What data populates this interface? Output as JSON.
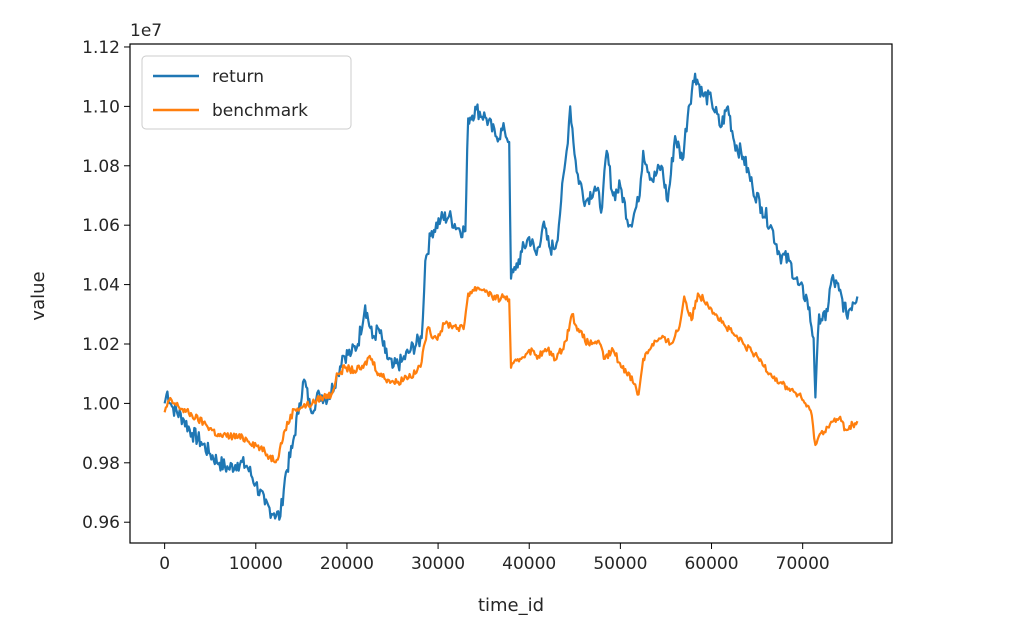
{
  "chart_data": {
    "type": "line",
    "xlabel": "time_id",
    "ylabel": "value",
    "offset_text": "1e7",
    "xlim": [
      -3800,
      79800
    ],
    "ylim": [
      0.953,
      1.121
    ],
    "xticks": [
      0,
      10000,
      20000,
      30000,
      40000,
      50000,
      60000,
      70000
    ],
    "xtick_labels": [
      "0",
      "10000",
      "20000",
      "30000",
      "40000",
      "50000",
      "60000",
      "70000"
    ],
    "yticks": [
      0.96,
      0.98,
      1.0,
      1.02,
      1.04,
      1.06,
      1.08,
      1.1,
      1.12
    ],
    "ytick_labels": [
      "0.96",
      "0.98",
      "1.00",
      "1.02",
      "1.04",
      "1.06",
      "1.08",
      "1.10",
      "1.12"
    ],
    "grid": false,
    "legend_position": "top-left",
    "series": [
      {
        "name": "return",
        "color": "#1f77b4",
        "points": [
          [
            0,
            1.0
          ],
          [
            300,
            1.004
          ],
          [
            800,
            0.999
          ],
          [
            2000,
            0.995
          ],
          [
            3000,
            0.99
          ],
          [
            4000,
            0.987
          ],
          [
            5000,
            0.983
          ],
          [
            6000,
            0.98
          ],
          [
            7000,
            0.978
          ],
          [
            8000,
            0.98
          ],
          [
            9000,
            0.979
          ],
          [
            10000,
            0.973
          ],
          [
            11000,
            0.966
          ],
          [
            12000,
            0.963
          ],
          [
            12700,
            0.962
          ],
          [
            13200,
            0.975
          ],
          [
            14000,
            0.985
          ],
          [
            14800,
            1.0
          ],
          [
            15300,
            1.008
          ],
          [
            16000,
            0.998
          ],
          [
            17000,
            1.003
          ],
          [
            18000,
            1.002
          ],
          [
            19000,
            1.01
          ],
          [
            19500,
            1.016
          ],
          [
            20500,
            1.017
          ],
          [
            21200,
            1.02
          ],
          [
            22000,
            1.033
          ],
          [
            22800,
            1.022
          ],
          [
            23500,
            1.025
          ],
          [
            24200,
            1.017
          ],
          [
            25000,
            1.012
          ],
          [
            26000,
            1.014
          ],
          [
            27000,
            1.018
          ],
          [
            28200,
            1.022
          ],
          [
            28600,
            1.048
          ],
          [
            29300,
            1.058
          ],
          [
            30300,
            1.062
          ],
          [
            31200,
            1.063
          ],
          [
            32200,
            1.059
          ],
          [
            33000,
            1.058
          ],
          [
            33300,
            1.096
          ],
          [
            34200,
            1.099
          ],
          [
            35300,
            1.096
          ],
          [
            36300,
            1.09
          ],
          [
            37300,
            1.092
          ],
          [
            37800,
            1.088
          ],
          [
            38000,
            1.042
          ],
          [
            38500,
            1.045
          ],
          [
            39200,
            1.051
          ],
          [
            40000,
            1.056
          ],
          [
            40800,
            1.05
          ],
          [
            41500,
            1.06
          ],
          [
            42300,
            1.052
          ],
          [
            43000,
            1.054
          ],
          [
            43500,
            1.068
          ],
          [
            44100,
            1.085
          ],
          [
            44500,
            1.1
          ],
          [
            45200,
            1.078
          ],
          [
            46200,
            1.068
          ],
          [
            47200,
            1.073
          ],
          [
            48000,
            1.066
          ],
          [
            48500,
            1.085
          ],
          [
            49200,
            1.07
          ],
          [
            50000,
            1.073
          ],
          [
            51000,
            1.06
          ],
          [
            52000,
            1.068
          ],
          [
            52500,
            1.085
          ],
          [
            53500,
            1.075
          ],
          [
            54500,
            1.08
          ],
          [
            55200,
            1.068
          ],
          [
            56000,
            1.09
          ],
          [
            56800,
            1.082
          ],
          [
            57500,
            1.1
          ],
          [
            58200,
            1.111
          ],
          [
            59000,
            1.104
          ],
          [
            60000,
            1.102
          ],
          [
            61000,
            1.093
          ],
          [
            61800,
            1.1
          ],
          [
            62500,
            1.088
          ],
          [
            63500,
            1.083
          ],
          [
            64500,
            1.073
          ],
          [
            65500,
            1.066
          ],
          [
            66500,
            1.06
          ],
          [
            67500,
            1.05
          ],
          [
            68500,
            1.048
          ],
          [
            69500,
            1.04
          ],
          [
            70500,
            1.035
          ],
          [
            71200,
            1.022
          ],
          [
            71400,
            1.002
          ],
          [
            71800,
            1.03
          ],
          [
            72500,
            1.028
          ],
          [
            73200,
            1.042
          ],
          [
            74000,
            1.038
          ],
          [
            74800,
            1.03
          ],
          [
            75500,
            1.034
          ],
          [
            76000,
            1.036
          ]
        ]
      },
      {
        "name": "benchmark",
        "color": "#ff7f0e",
        "points": [
          [
            0,
            0.997
          ],
          [
            500,
            1.001
          ],
          [
            1500,
            0.999
          ],
          [
            3000,
            0.996
          ],
          [
            4500,
            0.993
          ],
          [
            6000,
            0.989
          ],
          [
            7500,
            0.989
          ],
          [
            9000,
            0.988
          ],
          [
            10500,
            0.985
          ],
          [
            11500,
            0.982
          ],
          [
            12300,
            0.981
          ],
          [
            13200,
            0.991
          ],
          [
            14200,
            0.998
          ],
          [
            15200,
            0.999
          ],
          [
            16200,
            1.0
          ],
          [
            17200,
            1.002
          ],
          [
            18300,
            1.003
          ],
          [
            19000,
            1.01
          ],
          [
            19800,
            1.012
          ],
          [
            20800,
            1.011
          ],
          [
            21800,
            1.012
          ],
          [
            22500,
            1.016
          ],
          [
            23500,
            1.01
          ],
          [
            24500,
            1.008
          ],
          [
            25500,
            1.007
          ],
          [
            26500,
            1.009
          ],
          [
            27500,
            1.01
          ],
          [
            28200,
            1.014
          ],
          [
            28800,
            1.025
          ],
          [
            29800,
            1.022
          ],
          [
            30800,
            1.027
          ],
          [
            31800,
            1.026
          ],
          [
            32800,
            1.025
          ],
          [
            33300,
            1.037
          ],
          [
            34300,
            1.039
          ],
          [
            35300,
            1.038
          ],
          [
            36300,
            1.035
          ],
          [
            37300,
            1.036
          ],
          [
            37800,
            1.035
          ],
          [
            38000,
            1.012
          ],
          [
            39000,
            1.015
          ],
          [
            40000,
            1.018
          ],
          [
            41000,
            1.016
          ],
          [
            42000,
            1.018
          ],
          [
            43000,
            1.015
          ],
          [
            44000,
            1.021
          ],
          [
            44700,
            1.03
          ],
          [
            45500,
            1.024
          ],
          [
            46500,
            1.02
          ],
          [
            47500,
            1.021
          ],
          [
            48300,
            1.015
          ],
          [
            49200,
            1.018
          ],
          [
            50200,
            1.012
          ],
          [
            51000,
            1.01
          ],
          [
            52000,
            1.003
          ],
          [
            52500,
            1.015
          ],
          [
            53500,
            1.02
          ],
          [
            54500,
            1.022
          ],
          [
            55500,
            1.02
          ],
          [
            56500,
            1.026
          ],
          [
            57000,
            1.036
          ],
          [
            57800,
            1.028
          ],
          [
            58500,
            1.037
          ],
          [
            59500,
            1.034
          ],
          [
            60500,
            1.03
          ],
          [
            61500,
            1.026
          ],
          [
            62500,
            1.023
          ],
          [
            63500,
            1.02
          ],
          [
            64500,
            1.017
          ],
          [
            65500,
            1.014
          ],
          [
            66500,
            1.01
          ],
          [
            67500,
            1.007
          ],
          [
            68500,
            1.005
          ],
          [
            69500,
            1.003
          ],
          [
            70300,
            1.0
          ],
          [
            71000,
            0.996
          ],
          [
            71400,
            0.986
          ],
          [
            72000,
            0.99
          ],
          [
            73000,
            0.993
          ],
          [
            74000,
            0.995
          ],
          [
            74800,
            0.991
          ],
          [
            75500,
            0.993
          ],
          [
            76000,
            0.994
          ]
        ]
      }
    ]
  }
}
